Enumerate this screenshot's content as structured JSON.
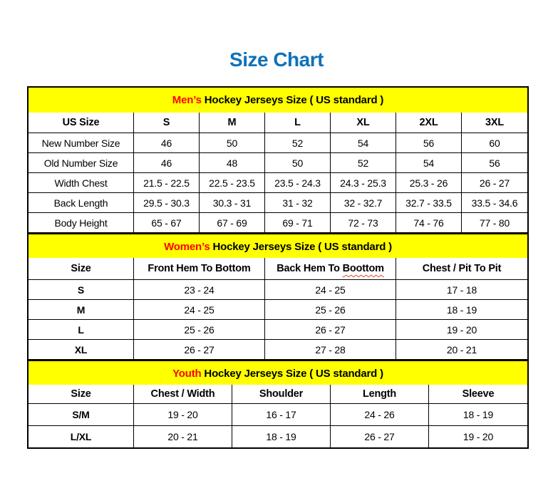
{
  "page_title": "Size Chart",
  "colors": {
    "title_blue": "#0F71B8",
    "band_yellow": "#FFFF00",
    "accent_red": "#FF0000",
    "border_black": "#000000"
  },
  "chart_data": {
    "type": "table",
    "title": "Size Chart"
  },
  "mens": {
    "title_accent": "Men’s",
    "title_rest": " Hockey Jerseys Size ( US standard )",
    "headers": [
      "US Size",
      "S",
      "M",
      "L",
      "XL",
      "2XL",
      "3XL"
    ],
    "rows": [
      [
        "New Number Size",
        "46",
        "50",
        "52",
        "54",
        "56",
        "60"
      ],
      [
        "Old Number Size",
        "46",
        "48",
        "50",
        "52",
        "54",
        "56"
      ],
      [
        "Width Chest",
        "21.5 - 22.5",
        "22.5 - 23.5",
        "23.5 - 24.3",
        "24.3 - 25.3",
        "25.3 - 26",
        "26 - 27"
      ],
      [
        "Back Length",
        "29.5 - 30.3",
        "30.3 - 31",
        "31 - 32",
        "32 - 32.7",
        "32.7 - 33.5",
        "33.5 - 34.6"
      ],
      [
        "Body Height",
        "65 - 67",
        "67 - 69",
        "69 - 71",
        "72 - 73",
        "74 - 76",
        "77 - 80"
      ]
    ]
  },
  "womens": {
    "title_accent": "Women’s",
    "title_rest": " Hockey Jerseys Size ( US standard )",
    "headers": {
      "size": "Size",
      "front": "Front Hem To Bottom",
      "back_prefix": "Back Hem To ",
      "back_misspelled": "Boottom",
      "chest": "Chest / Pit To Pit"
    },
    "rows": [
      [
        "S",
        "23 - 24",
        "24 - 25",
        "17 - 18"
      ],
      [
        "M",
        "24 - 25",
        "25 - 26",
        "18 - 19"
      ],
      [
        "L",
        "25 - 26",
        "26 - 27",
        "19 - 20"
      ],
      [
        "XL",
        "26 - 27",
        "27 - 28",
        "20 - 21"
      ]
    ]
  },
  "youth": {
    "title_accent": "Youth",
    "title_rest": " Hockey Jerseys Size ( US standard )",
    "headers": [
      "Size",
      "Chest / Width",
      "Shoulder",
      "Length",
      "Sleeve"
    ],
    "rows": [
      [
        "S/M",
        "19 - 20",
        "16 - 17",
        "24 - 26",
        "18 - 19"
      ],
      [
        "L/XL",
        "20 - 21",
        "18 - 19",
        "26 - 27",
        "19 - 20"
      ]
    ]
  }
}
